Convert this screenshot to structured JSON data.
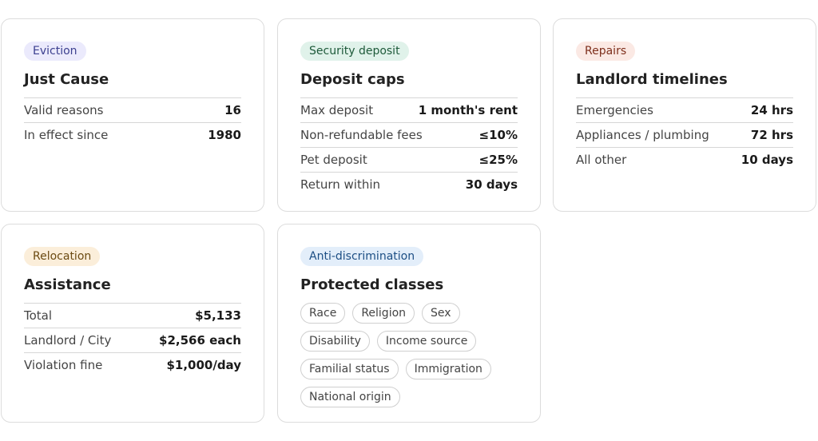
{
  "cards": {
    "eviction": {
      "tag": "Eviction",
      "title": "Just Cause",
      "rows": [
        {
          "label": "Valid reasons",
          "value": "16"
        },
        {
          "label": "In effect since",
          "value": "1980"
        }
      ]
    },
    "deposit": {
      "tag": "Security deposit",
      "title": "Deposit caps",
      "rows": [
        {
          "label": "Max deposit",
          "value": "1 month's rent"
        },
        {
          "label": "Non-refundable fees",
          "value": "≤10%"
        },
        {
          "label": "Pet deposit",
          "value": "≤25%"
        },
        {
          "label": "Return within",
          "value": "30 days"
        }
      ]
    },
    "repairs": {
      "tag": "Repairs",
      "title": "Landlord timelines",
      "rows": [
        {
          "label": "Emergencies",
          "value": "24 hrs"
        },
        {
          "label": "Appliances / plumbing",
          "value": "72 hrs"
        },
        {
          "label": "All other",
          "value": "10 days"
        }
      ]
    },
    "relocation": {
      "tag": "Relocation",
      "title": "Assistance",
      "rows": [
        {
          "label": "Total",
          "value": "$5,133"
        },
        {
          "label": "Landlord / City",
          "value": "$2,566 each"
        },
        {
          "label": "Violation fine",
          "value": "$1,000/day"
        }
      ]
    },
    "discrimination": {
      "tag": "Anti-discrimination",
      "title": "Protected classes",
      "chips": [
        "Race",
        "Religion",
        "Sex",
        "Disability",
        "Income source",
        "Familial status",
        "Immigration",
        "National origin"
      ]
    }
  },
  "colors": {
    "eviction_tag_bg": "#ebeafc",
    "deposit_tag_bg": "#e0f2ea",
    "repairs_tag_bg": "#fbe9e4",
    "relocation_tag_bg": "#fbeeda",
    "discrimination_tag_bg": "#e3eefa",
    "card_border": "#dcdcdc"
  }
}
